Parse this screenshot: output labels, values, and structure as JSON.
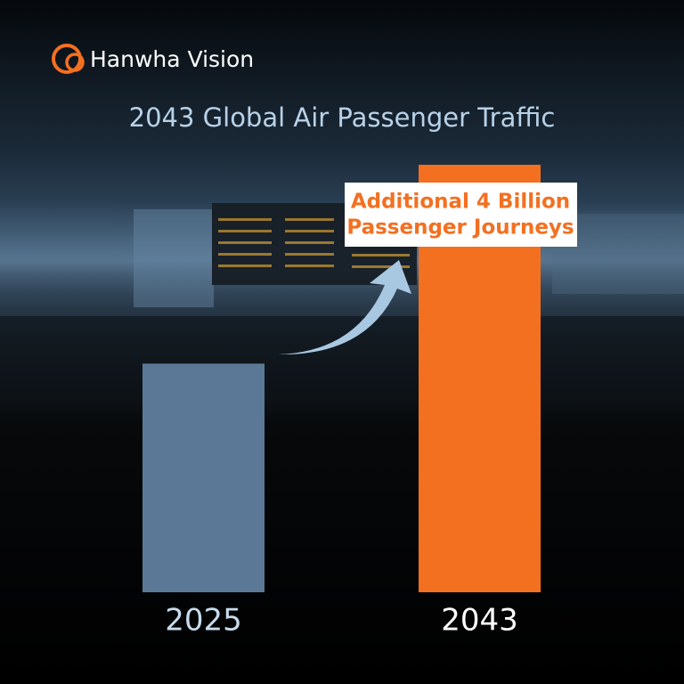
{
  "logo": "Hanwha Vision",
  "chart_data": {
    "type": "bar",
    "title": "2043 Global Air Passenger Traffic",
    "categories": [
      "2025",
      "2043"
    ],
    "values": [
      4.6,
      8.6
    ],
    "colors": [
      "#5b7996",
      "#f37021"
    ],
    "ylim": [
      0,
      8.6
    ],
    "annotation": [
      "Additional 4 Billion",
      "Passenger Journeys"
    ]
  }
}
